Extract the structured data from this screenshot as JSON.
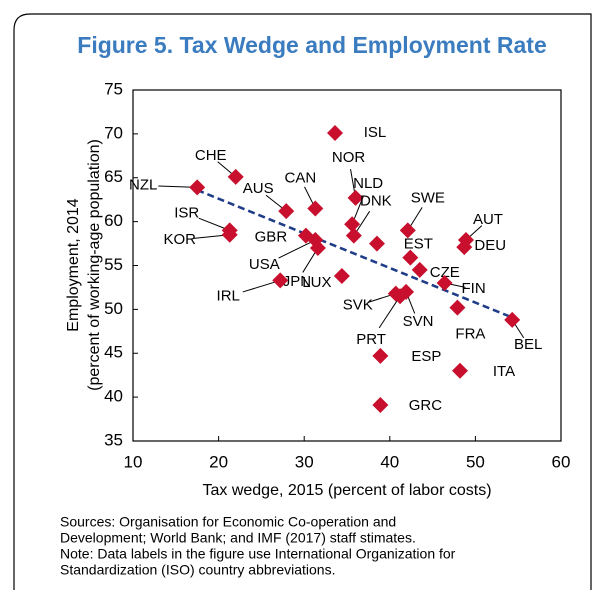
{
  "chart_data": {
    "type": "scatter",
    "title": "Figure 5. Tax Wedge and Employment Rate",
    "x_label": "Tax wedge, 2015 (percent of labor costs)",
    "y_label": [
      "Employment, 2014",
      "(percent of working-age population)"
    ],
    "xlim": [
      10,
      60
    ],
    "xticks": [
      10,
      20,
      30,
      40,
      50,
      60
    ],
    "ylim": [
      35,
      75
    ],
    "yticks": [
      35,
      40,
      45,
      50,
      55,
      60,
      65,
      70,
      75
    ],
    "color": "#c8102e",
    "labels": [
      "NZL",
      "CHE",
      "AUS",
      "ISR",
      "KOR",
      "CAN",
      "GBR",
      "USA",
      "JPN",
      "IRL",
      "ISL",
      "NOR",
      "NLD",
      "DNK",
      null,
      "SWE",
      "EST",
      "CZE",
      "LUX",
      "SVK",
      "SVN",
      "PRT",
      "FIN",
      "FRA",
      "AUT",
      "DEU",
      "BEL",
      "ESP",
      "ITA",
      "GRC"
    ],
    "x": [
      17.5,
      22.0,
      27.9,
      21.3,
      21.3,
      31.3,
      30.2,
      31.3,
      31.6,
      27.2,
      33.6,
      36.0,
      35.6,
      35.8,
      38.5,
      42.1,
      42.4,
      43.5,
      34.4,
      40.7,
      41.9,
      41.2,
      46.4,
      47.9,
      48.9,
      48.7,
      54.3,
      38.9,
      48.2,
      38.9
    ],
    "y": [
      63.9,
      65.1,
      61.2,
      59.0,
      58.5,
      61.5,
      58.4,
      57.9,
      57.0,
      53.3,
      70.1,
      62.7,
      59.7,
      58.4,
      57.5,
      59.0,
      55.9,
      54.5,
      53.8,
      51.8,
      52.0,
      51.5,
      53.0,
      50.2,
      57.9,
      57.1,
      48.8,
      44.7,
      43.0,
      39.1
    ],
    "trendline": {
      "color": "#1f3c88",
      "x": [
        17.5,
        55.0
      ],
      "y": [
        63.6,
        48.8
      ]
    },
    "notes": [
      "Sources: Organisation for Economic Co-operation and",
      "Development; World Bank; and IMF (2017) staff stimates.",
      "Note: Data labels in the figure use International Organization for",
      "Standardization (ISO) country abbreviations."
    ]
  }
}
